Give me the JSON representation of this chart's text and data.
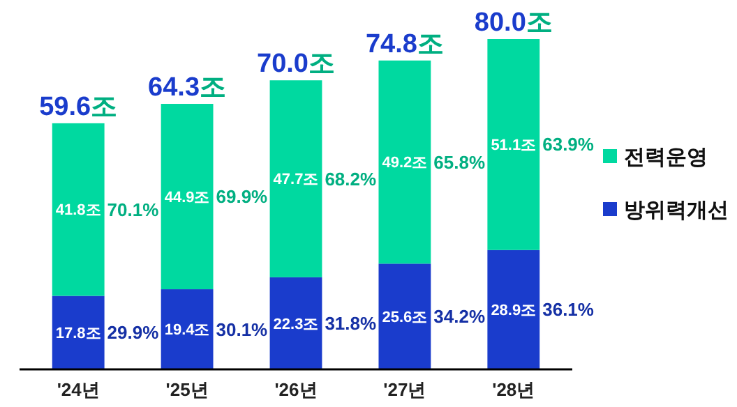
{
  "chart_data": {
    "type": "bar",
    "stacked": true,
    "categories": [
      "'24년",
      "'25년",
      "'26년",
      "'27년",
      "'28년"
    ],
    "series": [
      {
        "name": "방위력개선",
        "color": "#1a3ccc",
        "values": [
          17.8,
          19.4,
          22.3,
          25.6,
          28.9
        ],
        "value_labels": [
          "17.8조",
          "19.4조",
          "22.3조",
          "25.6조",
          "28.9조"
        ]
      },
      {
        "name": "전력운영",
        "color": "#00d9a0",
        "values": [
          41.8,
          44.9,
          47.7,
          49.2,
          51.1
        ],
        "value_labels": [
          "41.8조",
          "44.9조",
          "47.7조",
          "49.2조",
          "51.1조"
        ]
      }
    ],
    "totals": [
      "59.6조",
      "64.3조",
      "70.0조",
      "74.8조",
      "80.0조"
    ],
    "annotations": [
      "29.9%",
      "70.1%",
      "30.1%",
      "69.9%",
      "31.8%",
      "68.2%",
      "34.2%",
      "65.8%",
      "36.1%",
      "63.9%"
    ],
    "legend": "right"
  }
}
